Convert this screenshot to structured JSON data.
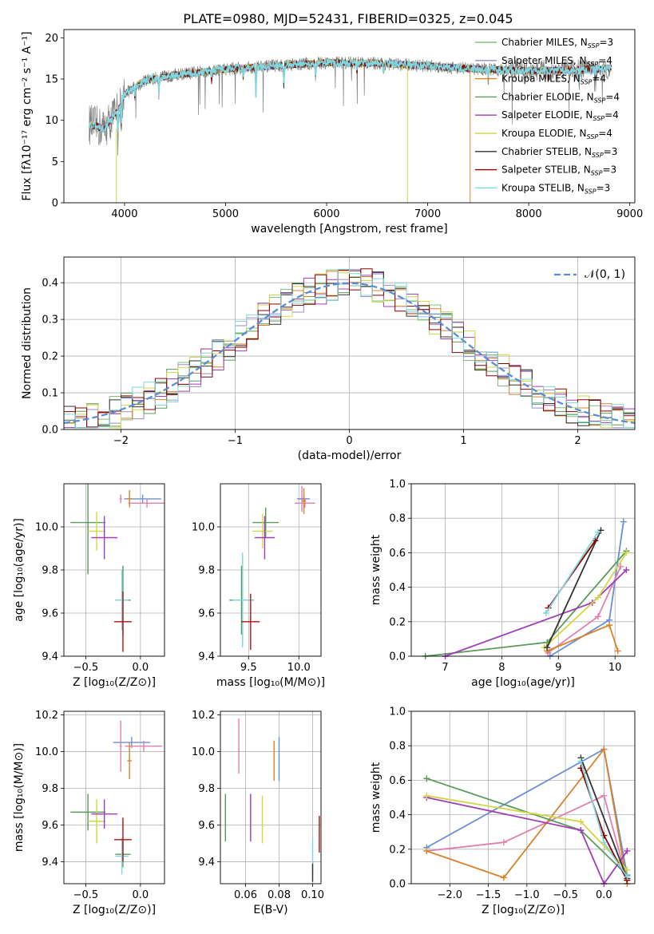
{
  "figure": {
    "title": "PLATE=0980, MJD=52431, FIBERID=0325, z=0.045"
  },
  "colors": [
    "#7fbf7f",
    "#9b8bd0",
    "#d9822b",
    "#5a9a5a",
    "#a23cb8",
    "#d2d643",
    "#333333",
    "#8b0000",
    "#7fd6e0"
  ],
  "chart_data": [
    {
      "id": "spectrum",
      "type": "line",
      "xlabel": "wavelength [Angstrom, rest frame]",
      "ylabel": "Flux [fλ10⁻¹⁷ erg cm⁻² s⁻¹ A⁻¹]",
      "xlim": [
        3400,
        9050
      ],
      "ylim": [
        0,
        21
      ],
      "xticks": [
        "4000",
        "5000",
        "6000",
        "7000",
        "8000",
        "9000"
      ],
      "yticks": [
        "0",
        "5",
        "10",
        "15",
        "20"
      ],
      "legend_position": "top-right",
      "legend": [
        {
          "label": "Chabrier MILES, N",
          "sub": "SSP",
          "tail": "=3",
          "color": "#7fbf7f"
        },
        {
          "label": "Salpeter MILES, N",
          "sub": "SSP",
          "tail": "=4",
          "color": "#9b8bd0"
        },
        {
          "label": "Kroupa MILES, N",
          "sub": "SSP",
          "tail": "=4",
          "color": "#d9822b"
        },
        {
          "label": "Chabrier ELODIE, N",
          "sub": "SSP",
          "tail": "=4",
          "color": "#5a9a5a"
        },
        {
          "label": "Salpeter ELODIE, N",
          "sub": "SSP",
          "tail": "=4",
          "color": "#a23cb8"
        },
        {
          "label": "Kroupa ELODIE, N",
          "sub": "SSP",
          "tail": "=4",
          "color": "#d2d643"
        },
        {
          "label": "Chabrier STELIB, N",
          "sub": "SSP",
          "tail": "=3",
          "color": "#333333"
        },
        {
          "label": "Salpeter STELIB, N",
          "sub": "SSP",
          "tail": "=3",
          "color": "#8b0000"
        },
        {
          "label": "Kroupa STELIB, N",
          "sub": "SSP",
          "tail": "=3",
          "color": "#7fd6e0"
        }
      ],
      "continuum_points": [
        [
          3650,
          9.5
        ],
        [
          3800,
          9.0
        ],
        [
          3950,
          11.5
        ],
        [
          4000,
          13.2
        ],
        [
          4200,
          14.8
        ],
        [
          4500,
          15.5
        ],
        [
          5000,
          16.2
        ],
        [
          5500,
          16.6
        ],
        [
          6000,
          17.0
        ],
        [
          6500,
          16.9
        ],
        [
          7000,
          16.6
        ],
        [
          7500,
          16.2
        ],
        [
          8000,
          16.0
        ],
        [
          8500,
          16.1
        ],
        [
          8800,
          16.3
        ]
      ]
    },
    {
      "id": "residual_histogram",
      "type": "histogram",
      "xlabel": "(data-model)/error",
      "ylabel": "Normed distribution",
      "xlim": [
        -2.5,
        2.5
      ],
      "ylim": [
        0,
        0.47
      ],
      "xticks": [
        "−2",
        "−1",
        "0",
        "1",
        "2"
      ],
      "yticks": [
        "0.0",
        "0.1",
        "0.2",
        "0.3",
        "0.4"
      ],
      "reference_curve": "N(0,1)",
      "reference_label": "𝒩(0, 1)",
      "bin_width": 0.1,
      "bins_from": -2.5
    },
    {
      "id": "age_vs_Z",
      "type": "errorbar",
      "xlabel": "Z [log₁₀(Z/Z⊙)]",
      "ylabel": "age  [log₁₀(age/yr)]",
      "xlim": [
        -0.7,
        0.22
      ],
      "ylim": [
        9.4,
        10.2
      ],
      "xticks": [
        "−0.5",
        "0.0"
      ],
      "yticks": [
        "9.4",
        "9.6",
        "9.8",
        "10.0"
      ],
      "points": [
        {
          "x": -0.48,
          "xe": 0.16,
          "y": 10.02,
          "ye": 0.24,
          "c": "#5a9a5a"
        },
        {
          "x": -0.4,
          "xe": 0.08,
          "y": 9.98,
          "ye": 0.09,
          "c": "#d2d643"
        },
        {
          "x": -0.33,
          "xe": 0.12,
          "y": 9.95,
          "ye": 0.1,
          "c": "#a23cb8"
        },
        {
          "x": -0.18,
          "xe": 0.01,
          "y": 10.13,
          "ye": 0.02,
          "c": "#e07fb0"
        },
        {
          "x": 0.02,
          "xe": 0.17,
          "y": 10.13,
          "ye": 0.02,
          "c": "#6a8fd8"
        },
        {
          "x": 0.06,
          "xe": 0.17,
          "y": 10.11,
          "ye": 0.02,
          "c": "#e07fb0"
        },
        {
          "x": -0.16,
          "xe": 0.07,
          "y": 9.66,
          "ye": 0.16,
          "c": "#5a9a5a"
        },
        {
          "x": -0.17,
          "xe": 0.06,
          "y": 9.66,
          "ye": 0.14,
          "c": "#7fd6e0"
        },
        {
          "x": -0.16,
          "xe": 0.08,
          "y": 9.56,
          "ye": 0.14,
          "c": "#b01010"
        },
        {
          "x": -0.1,
          "xe": 0.02,
          "y": 10.13,
          "ye": 0.04,
          "c": "#d9822b"
        }
      ]
    },
    {
      "id": "age_vs_mass",
      "type": "errorbar",
      "xlabel": "mass [log₁₀(M/M⊙)]",
      "ylabel": "",
      "xlim": [
        9.22,
        10.22
      ],
      "ylim": [
        9.4,
        10.2
      ],
      "xticks": [
        "9.5",
        "10.0"
      ],
      "yticks": [
        "9.4",
        "9.6",
        "9.8",
        "10.0"
      ],
      "points": [
        {
          "x": 9.67,
          "xe": 0.13,
          "y": 10.02,
          "ye": 0.07,
          "c": "#5a9a5a"
        },
        {
          "x": 9.64,
          "xe": 0.1,
          "y": 9.98,
          "ye": 0.08,
          "c": "#d2d643"
        },
        {
          "x": 9.66,
          "xe": 0.1,
          "y": 9.95,
          "ye": 0.1,
          "c": "#a23cb8"
        },
        {
          "x": 10.03,
          "xe": 0.05,
          "y": 10.13,
          "ye": 0.06,
          "c": "#e07fb0"
        },
        {
          "x": 10.05,
          "xe": 0.06,
          "y": 10.13,
          "ye": 0.02,
          "c": "#6a8fd8"
        },
        {
          "x": 10.06,
          "xe": 0.1,
          "y": 10.11,
          "ye": 0.02,
          "c": "#e07fb0"
        },
        {
          "x": 9.43,
          "xe": 0.12,
          "y": 9.66,
          "ye": 0.16,
          "c": "#5a9a5a"
        },
        {
          "x": 9.44,
          "xe": 0.1,
          "y": 9.66,
          "ye": 0.22,
          "c": "#7fd6e0"
        },
        {
          "x": 9.52,
          "xe": 0.09,
          "y": 9.56,
          "ye": 0.13,
          "c": "#b01010"
        },
        {
          "x": 10.05,
          "xe": 0.02,
          "y": 10.12,
          "ye": 0.06,
          "c": "#d9822b"
        }
      ]
    },
    {
      "id": "massweight_vs_age",
      "type": "line",
      "xlabel": "age  [log₁₀(age/yr)]",
      "ylabel": "mass weight",
      "xlim": [
        6.4,
        10.35
      ],
      "ylim": [
        0,
        1.0
      ],
      "xticks": [
        "7",
        "8",
        "9",
        "10"
      ],
      "yticks": [
        "0.0",
        "0.2",
        "0.4",
        "0.6",
        "0.8",
        "1.0"
      ],
      "series": [
        {
          "c": "#6a8fd8",
          "pts": [
            [
              8.85,
              0.0
            ],
            [
              9.9,
              0.21
            ],
            [
              10.15,
              0.78
            ]
          ]
        },
        {
          "c": "#e07fb0",
          "pts": [
            [
              8.82,
              0.02
            ],
            [
              9.7,
              0.23
            ],
            [
              10.1,
              0.52
            ]
          ]
        },
        {
          "c": "#d9822b",
          "pts": [
            [
              8.8,
              0.03
            ],
            [
              9.9,
              0.18
            ],
            [
              10.05,
              0.03
            ]
          ]
        },
        {
          "c": "#5a9a5a",
          "pts": [
            [
              6.65,
              0.0
            ],
            [
              8.8,
              0.08
            ],
            [
              10.2,
              0.61
            ]
          ]
        },
        {
          "c": "#a23cb8",
          "pts": [
            [
              7.0,
              0.0
            ],
            [
              9.6,
              0.31
            ],
            [
              10.2,
              0.5
            ]
          ]
        },
        {
          "c": "#d2d643",
          "pts": [
            [
              8.75,
              0.05
            ],
            [
              9.7,
              0.34
            ],
            [
              10.2,
              0.6
            ]
          ]
        },
        {
          "c": "#333333",
          "pts": [
            [
              8.8,
              0.05
            ],
            [
              9.75,
              0.73
            ]
          ]
        },
        {
          "c": "#8b0000",
          "pts": [
            [
              8.82,
              0.28
            ],
            [
              9.65,
              0.67
            ]
          ]
        },
        {
          "c": "#7fd6e0",
          "pts": [
            [
              8.78,
              0.25
            ],
            [
              9.7,
              0.72
            ]
          ]
        }
      ]
    },
    {
      "id": "mass_vs_Z",
      "type": "errorbar",
      "xlabel": "Z [log₁₀(Z/Z⊙)]",
      "ylabel": "mass [log₁₀(M/M⊙)]",
      "xlim": [
        -0.7,
        0.22
      ],
      "ylim": [
        9.28,
        10.22
      ],
      "xticks": [
        "−0.5",
        "0.0"
      ],
      "yticks": [
        "9.4",
        "9.6",
        "9.8",
        "10.0",
        "10.2"
      ],
      "points": [
        {
          "x": -0.48,
          "xe": 0.16,
          "y": 9.67,
          "ye": 0.1,
          "c": "#5a9a5a"
        },
        {
          "x": -0.4,
          "xe": 0.08,
          "y": 9.62,
          "ye": 0.12,
          "c": "#d2d643"
        },
        {
          "x": -0.33,
          "xe": 0.12,
          "y": 9.66,
          "ye": 0.08,
          "c": "#a23cb8"
        },
        {
          "x": -0.18,
          "xe": 0.01,
          "y": 10.03,
          "ye": 0.14,
          "c": "#e07fb0"
        },
        {
          "x": -0.08,
          "xe": 0.17,
          "y": 10.05,
          "ye": 0.03,
          "c": "#6a8fd8"
        },
        {
          "x": 0.03,
          "xe": 0.17,
          "y": 10.03,
          "ye": 0.03,
          "c": "#e07fb0"
        },
        {
          "x": -0.16,
          "xe": 0.07,
          "y": 9.44,
          "ye": 0.07,
          "c": "#5a9a5a"
        },
        {
          "x": -0.17,
          "xe": 0.06,
          "y": 9.43,
          "ye": 0.1,
          "c": "#7fd6e0"
        },
        {
          "x": -0.16,
          "xe": 0.08,
          "y": 9.52,
          "ye": 0.12,
          "c": "#b01010"
        },
        {
          "x": -0.1,
          "xe": 0.02,
          "y": 9.95,
          "ye": 0.1,
          "c": "#d9822b"
        }
      ]
    },
    {
      "id": "mass_vs_ebv",
      "type": "errorbar",
      "xlabel": "E(B-V)",
      "ylabel": "",
      "xlim": [
        0.045,
        0.105
      ],
      "ylim": [
        9.28,
        10.22
      ],
      "xticks": [
        "0.06",
        "0.08",
        "0.10"
      ],
      "yticks": [
        "9.4",
        "9.6",
        "9.8",
        "10.0",
        "10.2"
      ],
      "points": [
        {
          "x": 0.048,
          "xe": 0.0,
          "y": 9.64,
          "ye": 0.13,
          "c": "#5a9a5a"
        },
        {
          "x": 0.056,
          "xe": 0.0,
          "y": 10.03,
          "ye": 0.15,
          "c": "#e07fb0"
        },
        {
          "x": 0.063,
          "xe": 0.0,
          "y": 9.64,
          "ye": 0.13,
          "c": "#a23cb8"
        },
        {
          "x": 0.07,
          "xe": 0.0,
          "y": 9.63,
          "ye": 0.13,
          "c": "#d2d643"
        },
        {
          "x": 0.077,
          "xe": 0.0,
          "y": 9.95,
          "ye": 0.11,
          "c": "#d9822b"
        },
        {
          "x": 0.08,
          "xe": 0.0,
          "y": 9.96,
          "ye": 0.12,
          "c": "#6a8fd8"
        },
        {
          "x": 0.1,
          "xe": 0.0,
          "y": 9.43,
          "ye": 0.1,
          "c": "#7fd6e0"
        },
        {
          "x": 0.1,
          "xe": 0.0,
          "y": 9.34,
          "ye": 0.05,
          "c": "#333333"
        },
        {
          "x": 0.104,
          "xe": 0.0,
          "y": 9.55,
          "ye": 0.1,
          "c": "#b01010"
        }
      ]
    },
    {
      "id": "massweight_vs_Z",
      "type": "line",
      "xlabel": "Z [log₁₀(Z/Z⊙)]",
      "ylabel": "mass weight",
      "xlim": [
        -2.5,
        0.4
      ],
      "ylim": [
        0,
        1.0
      ],
      "xticks": [
        "−2.0",
        "−1.5",
        "−1.0",
        "−0.5",
        "0.0"
      ],
      "yticks": [
        "0.0",
        "0.2",
        "0.4",
        "0.6",
        "0.8",
        "1.0"
      ],
      "series": [
        {
          "c": "#6a8fd8",
          "pts": [
            [
              -2.3,
              0.21
            ],
            [
              0.0,
              0.78
            ],
            [
              0.3,
              0.05
            ]
          ]
        },
        {
          "c": "#e07fb0",
          "pts": [
            [
              -2.3,
              0.19
            ],
            [
              -1.3,
              0.24
            ],
            [
              0.0,
              0.51
            ],
            [
              0.3,
              0.02
            ]
          ]
        },
        {
          "c": "#d9822b",
          "pts": [
            [
              -2.3,
              0.19
            ],
            [
              -1.3,
              0.035
            ],
            [
              0.0,
              0.78
            ],
            [
              0.3,
              0.0
            ]
          ]
        },
        {
          "c": "#5a9a5a",
          "pts": [
            [
              -2.3,
              0.61
            ],
            [
              -0.3,
              0.31
            ],
            [
              0.3,
              0.05
            ]
          ]
        },
        {
          "c": "#a23cb8",
          "pts": [
            [
              -2.3,
              0.5
            ],
            [
              -0.3,
              0.31
            ],
            [
              0.0,
              0.0
            ],
            [
              0.3,
              0.19
            ]
          ]
        },
        {
          "c": "#d2d643",
          "pts": [
            [
              -2.3,
              0.51
            ],
            [
              -0.3,
              0.36
            ],
            [
              0.3,
              0.08
            ]
          ]
        },
        {
          "c": "#333333",
          "pts": [
            [
              -0.3,
              0.73
            ],
            [
              0.3,
              0.03
            ]
          ]
        },
        {
          "c": "#8b0000",
          "pts": [
            [
              -0.3,
              0.67
            ],
            [
              0.0,
              0.28
            ],
            [
              0.3,
              0.02
            ]
          ]
        },
        {
          "c": "#7fd6e0",
          "pts": [
            [
              -0.3,
              0.71
            ],
            [
              0.0,
              0.24
            ],
            [
              0.3,
              0.04
            ]
          ]
        }
      ]
    }
  ]
}
